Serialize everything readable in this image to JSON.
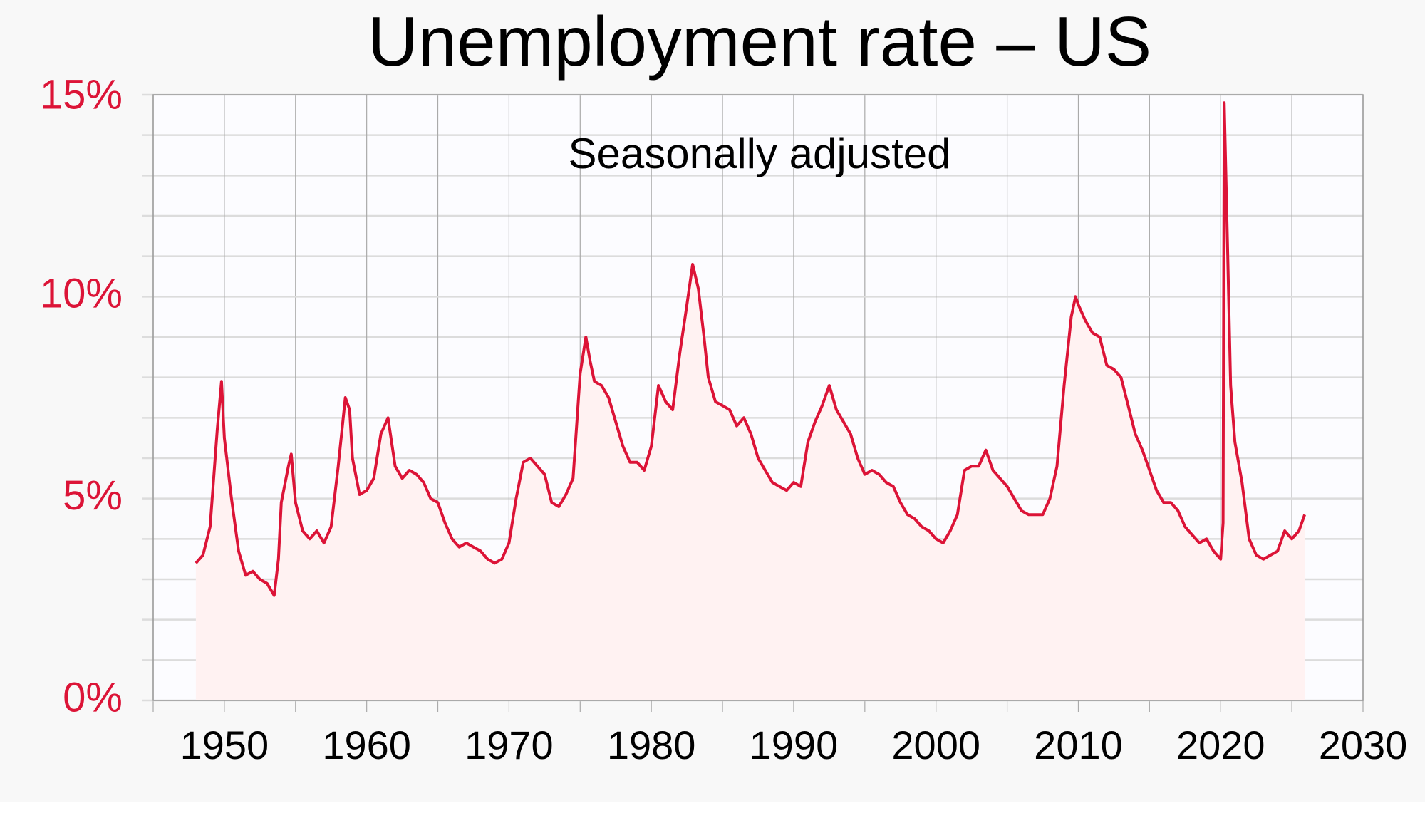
{
  "chart_data": {
    "type": "line",
    "title": "Unemployment rate – US",
    "subtitle": "Seasonally adjusted",
    "x": [
      1948.0,
      1948.5,
      1949.0,
      1949.5,
      1949.8,
      1950.0,
      1950.5,
      1951.0,
      1951.5,
      1952.0,
      1952.5,
      1953.0,
      1953.5,
      1953.8,
      1954.0,
      1954.5,
      1954.7,
      1955.0,
      1955.5,
      1956.0,
      1956.5,
      1957.0,
      1957.5,
      1958.0,
      1958.5,
      1958.8,
      1959.0,
      1959.5,
      1960.0,
      1960.5,
      1961.0,
      1961.5,
      1962.0,
      1962.5,
      1963.0,
      1963.5,
      1964.0,
      1964.5,
      1965.0,
      1965.5,
      1966.0,
      1966.5,
      1967.0,
      1967.5,
      1968.0,
      1968.5,
      1969.0,
      1969.5,
      1970.0,
      1970.5,
      1971.0,
      1971.5,
      1972.0,
      1972.5,
      1973.0,
      1973.5,
      1974.0,
      1974.5,
      1975.0,
      1975.4,
      1975.7,
      1976.0,
      1976.5,
      1977.0,
      1977.5,
      1978.0,
      1978.5,
      1979.0,
      1979.5,
      1980.0,
      1980.5,
      1981.0,
      1981.5,
      1982.0,
      1982.5,
      1982.9,
      1983.3,
      1983.7,
      1984.0,
      1984.5,
      1985.0,
      1985.5,
      1986.0,
      1986.5,
      1987.0,
      1987.5,
      1988.0,
      1988.5,
      1989.0,
      1989.5,
      1990.0,
      1990.5,
      1991.0,
      1991.5,
      1992.0,
      1992.5,
      1993.0,
      1993.5,
      1994.0,
      1994.5,
      1995.0,
      1995.5,
      1996.0,
      1996.5,
      1997.0,
      1997.5,
      1998.0,
      1998.5,
      1999.0,
      1999.5,
      2000.0,
      2000.5,
      2001.0,
      2001.5,
      2002.0,
      2002.5,
      2003.0,
      2003.5,
      2004.0,
      2004.5,
      2005.0,
      2005.5,
      2006.0,
      2006.5,
      2007.0,
      2007.5,
      2008.0,
      2008.5,
      2009.0,
      2009.5,
      2009.8,
      2010.0,
      2010.5,
      2011.0,
      2011.5,
      2012.0,
      2012.5,
      2013.0,
      2013.5,
      2014.0,
      2014.5,
      2015.0,
      2015.5,
      2016.0,
      2016.5,
      2017.0,
      2017.5,
      2018.0,
      2018.5,
      2019.0,
      2019.5,
      2020.0,
      2020.17,
      2020.25,
      2020.5,
      2020.7,
      2021.0,
      2021.5,
      2022.0,
      2022.5,
      2023.0,
      2023.5,
      2024.0,
      2024.5,
      2025.0,
      2025.5,
      2025.9
    ],
    "series": [
      {
        "color": "#dc1437",
        "values": [
          3.4,
          3.6,
          4.3,
          6.7,
          7.9,
          6.5,
          5.0,
          3.7,
          3.1,
          3.2,
          3.0,
          2.9,
          2.6,
          3.5,
          4.9,
          5.8,
          6.1,
          4.9,
          4.2,
          4.0,
          4.2,
          3.9,
          4.3,
          5.8,
          7.5,
          7.2,
          6.0,
          5.1,
          5.2,
          5.5,
          6.6,
          7.0,
          5.8,
          5.5,
          5.7,
          5.6,
          5.4,
          5.0,
          4.9,
          4.4,
          4.0,
          3.8,
          3.9,
          3.8,
          3.7,
          3.5,
          3.4,
          3.5,
          3.9,
          5.0,
          5.9,
          6.0,
          5.8,
          5.6,
          4.9,
          4.8,
          5.1,
          5.5,
          8.1,
          9.0,
          8.4,
          7.9,
          7.8,
          7.5,
          6.9,
          6.3,
          5.9,
          5.9,
          5.7,
          6.3,
          7.8,
          7.4,
          7.2,
          8.6,
          9.8,
          10.8,
          10.2,
          9.0,
          8.0,
          7.4,
          7.3,
          7.2,
          6.8,
          7.0,
          6.6,
          6.0,
          5.7,
          5.4,
          5.3,
          5.2,
          5.4,
          5.3,
          6.4,
          6.9,
          7.3,
          7.8,
          7.2,
          6.9,
          6.6,
          6.0,
          5.6,
          5.7,
          5.6,
          5.4,
          5.3,
          4.9,
          4.6,
          4.5,
          4.3,
          4.2,
          4.0,
          3.9,
          4.2,
          4.6,
          5.7,
          5.8,
          5.8,
          6.2,
          5.7,
          5.5,
          5.3,
          5.0,
          4.7,
          4.6,
          4.6,
          4.6,
          5.0,
          5.8,
          7.8,
          9.5,
          10.0,
          9.8,
          9.4,
          9.1,
          9.0,
          8.3,
          8.2,
          8.0,
          7.3,
          6.6,
          6.2,
          5.7,
          5.2,
          4.9,
          4.9,
          4.7,
          4.3,
          4.1,
          3.9,
          4.0,
          3.7,
          3.5,
          4.4,
          14.8,
          11.0,
          7.8,
          6.4,
          5.4,
          4.0,
          3.6,
          3.5,
          3.6,
          3.7,
          4.2,
          4.0,
          4.2,
          4.6
        ]
      }
    ],
    "area_color": "#fff2f2",
    "xlim": [
      1945,
      2030
    ],
    "ylim": [
      0,
      15
    ],
    "xticks": [
      1950,
      1960,
      1970,
      1980,
      1990,
      2000,
      2010,
      2020,
      2030
    ],
    "xminorticks": [
      1945,
      1955,
      1965,
      1975,
      1985,
      1995,
      2005,
      2015,
      2025
    ],
    "yticks": [
      {
        "value": 0,
        "label": "0%"
      },
      {
        "value": 5,
        "label": "5%"
      },
      {
        "value": 10,
        "label": "10%"
      },
      {
        "value": 15,
        "label": "15%"
      }
    ],
    "yminorticks": [
      1,
      2,
      3,
      4,
      6,
      7,
      8,
      9,
      11,
      12,
      13,
      14
    ],
    "grid": true
  }
}
